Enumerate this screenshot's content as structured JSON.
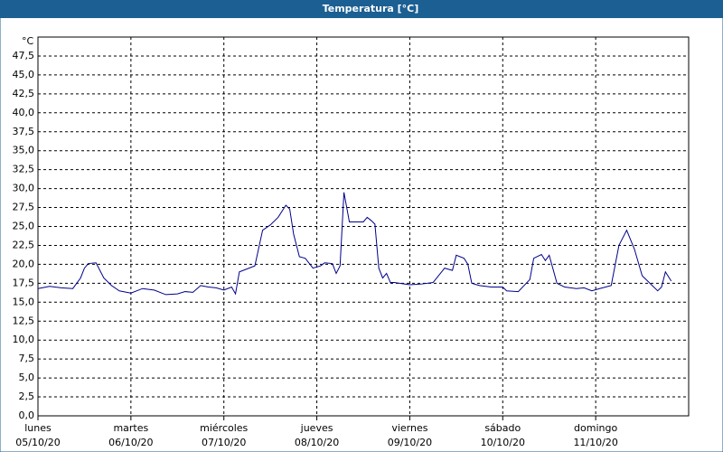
{
  "chart_data": {
    "type": "line",
    "title": "Temperatura [°C]",
    "y_unit": "°C",
    "x": [
      0,
      3,
      6,
      9,
      11,
      12,
      13,
      15,
      17,
      19,
      21,
      24,
      27,
      30,
      33,
      36,
      38,
      40,
      42,
      44,
      46,
      48,
      50,
      51,
      52,
      56,
      58,
      60,
      62,
      64,
      65,
      66,
      67.5,
      69,
      71,
      73,
      74,
      76,
      77,
      78,
      79,
      80.4,
      81,
      84,
      85,
      86,
      87,
      88,
      89,
      90,
      91,
      92,
      96,
      99,
      102,
      105,
      107,
      108,
      110,
      111,
      112,
      114,
      117,
      120,
      121,
      124,
      127,
      128,
      130,
      131,
      132,
      134,
      136,
      139,
      141,
      143,
      145,
      148,
      150,
      152,
      154,
      156,
      158,
      160,
      161,
      162,
      163.5
    ],
    "series": [
      {
        "name": "Temperatura",
        "color": "#00008b",
        "values": [
          16.8,
          17.1,
          16.9,
          16.8,
          18.2,
          19.5,
          20.1,
          20.2,
          18.2,
          17.2,
          16.5,
          16.2,
          16.8,
          16.6,
          16.0,
          16.1,
          16.4,
          16.3,
          17.2,
          17.0,
          16.9,
          16.6,
          17.0,
          16.1,
          19.0,
          19.8,
          24.5,
          25.2,
          26.2,
          27.8,
          27.3,
          24.0,
          21.0,
          20.8,
          19.5,
          19.8,
          20.2,
          20.1,
          18.8,
          19.8,
          29.5,
          25.6,
          25.6,
          25.6,
          26.2,
          25.8,
          25.3,
          19.5,
          18.2,
          18.8,
          17.6,
          17.6,
          17.3,
          17.4,
          17.6,
          19.5,
          19.2,
          21.2,
          20.8,
          20.0,
          17.5,
          17.2,
          17.0,
          17.0,
          16.5,
          16.4,
          18.0,
          20.8,
          21.3,
          20.5,
          21.2,
          17.5,
          17.0,
          16.8,
          16.9,
          16.5,
          16.8,
          17.2,
          22.5,
          24.5,
          22.0,
          18.5,
          17.5,
          16.5,
          17.0,
          19.0,
          17.8
        ]
      }
    ],
    "xlim": [
      0,
      168
    ],
    "xticks": [
      {
        "value": 0,
        "label": "lunes",
        "date": "05/10/20"
      },
      {
        "value": 24,
        "label": "martes",
        "date": "06/10/20"
      },
      {
        "value": 48,
        "label": "miércoles",
        "date": "07/10/20"
      },
      {
        "value": 72,
        "label": "jueves",
        "date": "08/10/20"
      },
      {
        "value": 96,
        "label": "viernes",
        "date": "09/10/20"
      },
      {
        "value": 120,
        "label": "sábado",
        "date": "10/10/20"
      },
      {
        "value": 144,
        "label": "domingo",
        "date": "11/10/20"
      }
    ],
    "ylim": [
      0,
      50
    ],
    "yticks": [
      {
        "value": 0,
        "label": "0,0"
      },
      {
        "value": 2.5,
        "label": "2,5"
      },
      {
        "value": 5,
        "label": "5,0"
      },
      {
        "value": 7.5,
        "label": "7,5"
      },
      {
        "value": 10,
        "label": "10,0"
      },
      {
        "value": 12.5,
        "label": "12,5"
      },
      {
        "value": 15,
        "label": "15,0"
      },
      {
        "value": 17.5,
        "label": "17,5"
      },
      {
        "value": 20,
        "label": "20,0"
      },
      {
        "value": 22.5,
        "label": "22,5"
      },
      {
        "value": 25,
        "label": "25,0"
      },
      {
        "value": 27.5,
        "label": "27,5"
      },
      {
        "value": 30,
        "label": "30,0"
      },
      {
        "value": 32.5,
        "label": "32,5"
      },
      {
        "value": 35,
        "label": "35,0"
      },
      {
        "value": 37.5,
        "label": "37,5"
      },
      {
        "value": 40,
        "label": "40,0"
      },
      {
        "value": 42.5,
        "label": "42,5"
      },
      {
        "value": 45,
        "label": "45,0"
      },
      {
        "value": 47.5,
        "label": "47,5"
      }
    ],
    "grid": true
  }
}
